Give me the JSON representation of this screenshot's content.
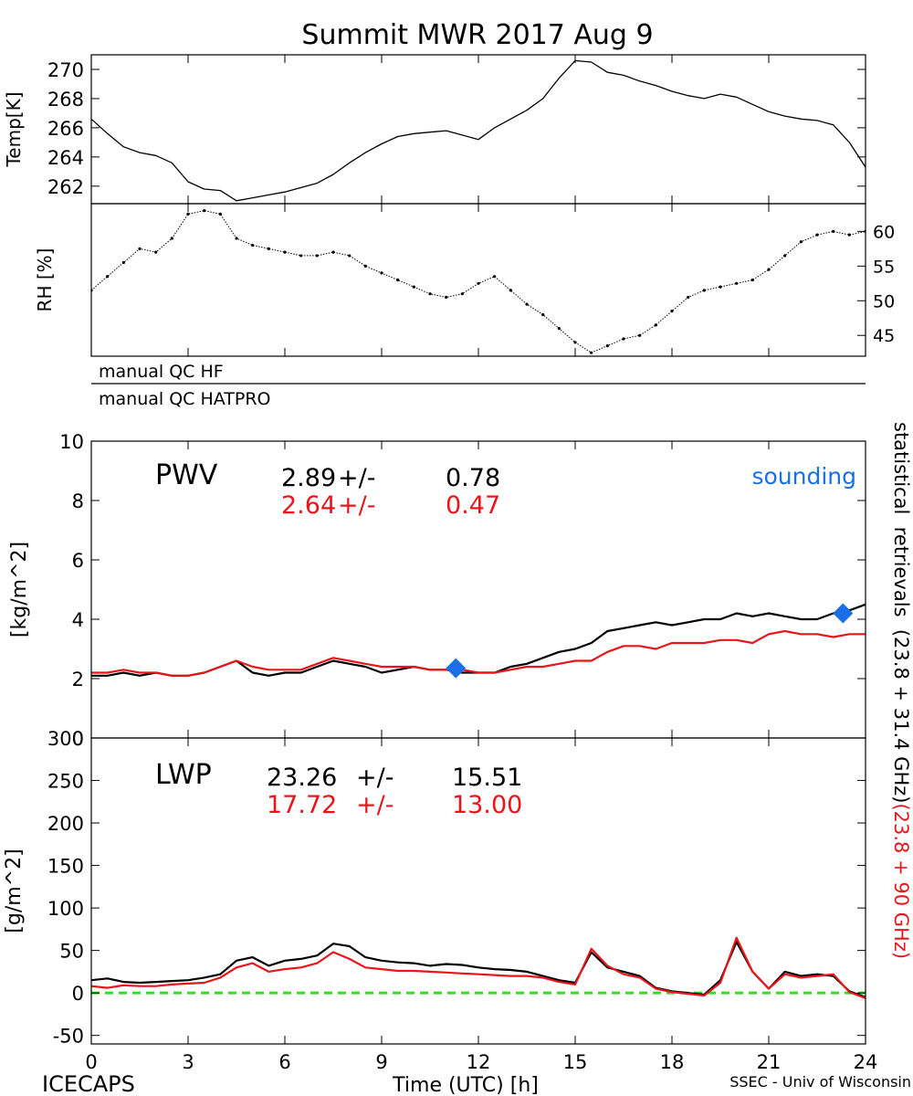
{
  "page": {
    "title": "Summit MWR 2017 Aug  9",
    "footer_left": "ICECAPS",
    "footer_right": "SSEC - Univ of Wisconsin",
    "qc_labels": [
      "manual  QC  HF",
      "manual  QC  HATPRO"
    ]
  },
  "colors": {
    "primary": "#000000",
    "secondary": "#e8161b",
    "sounding": "#1a6fe8",
    "zero_line": "#33dd22"
  },
  "chart_data": [
    {
      "id": "temp",
      "type": "line",
      "ylabel": "Temp[K]",
      "ylim": [
        260.8,
        271
      ],
      "yticks": [
        262,
        264,
        266,
        268,
        270
      ],
      "x": [
        0,
        0.5,
        1,
        1.5,
        2,
        2.5,
        3,
        3.5,
        4,
        4.5,
        5,
        5.5,
        6,
        6.5,
        7,
        7.5,
        8,
        8.5,
        9,
        9.5,
        10,
        10.5,
        11,
        11.5,
        12,
        12.5,
        13,
        13.5,
        14,
        14.5,
        15,
        15.5,
        16,
        16.5,
        17,
        17.5,
        18,
        18.5,
        19,
        19.5,
        20,
        20.5,
        21,
        21.5,
        22,
        22.5,
        23,
        23.5,
        24
      ],
      "y": [
        266.6,
        265.6,
        264.7,
        264.3,
        264.1,
        263.6,
        262.3,
        261.8,
        261.7,
        261.0,
        261.2,
        261.4,
        261.6,
        261.9,
        262.2,
        262.8,
        263.6,
        264.3,
        264.9,
        265.4,
        265.6,
        265.7,
        265.8,
        265.5,
        265.2,
        266.0,
        266.6,
        267.2,
        268.0,
        269.4,
        270.6,
        270.5,
        269.8,
        269.6,
        269.2,
        268.9,
        268.5,
        268.2,
        268.0,
        268.3,
        268.1,
        267.6,
        267.1,
        266.8,
        266.6,
        266.5,
        266.2,
        265.0,
        263.3
      ],
      "series": [
        {
          "name": "",
          "color": "#000000"
        }
      ]
    },
    {
      "id": "rh",
      "type": "scatter",
      "ylabel": "RH [%]",
      "ylim": [
        42,
        64
      ],
      "yticks": [
        45,
        50,
        55,
        60
      ],
      "x": [
        0,
        0.5,
        1,
        1.5,
        2,
        2.5,
        3,
        3.5,
        4,
        4.5,
        5,
        5.5,
        6,
        6.5,
        7,
        7.5,
        8,
        8.5,
        9,
        9.5,
        10,
        10.5,
        11,
        11.5,
        12,
        12.5,
        13,
        13.5,
        14,
        14.5,
        15,
        15.5,
        16,
        16.5,
        17,
        17.5,
        18,
        18.5,
        19,
        19.5,
        20,
        20.5,
        21,
        21.5,
        22,
        22.5,
        23,
        23.5,
        24
      ],
      "y": [
        51.5,
        53.5,
        55.5,
        57.5,
        57.0,
        59.0,
        62.5,
        63.0,
        62.5,
        59.0,
        58.0,
        57.5,
        57.0,
        56.5,
        56.5,
        57.0,
        56.5,
        55.0,
        54.0,
        53.0,
        52.0,
        51.0,
        50.5,
        51.0,
        52.5,
        53.5,
        51.5,
        49.5,
        48.0,
        46.0,
        44.0,
        42.5,
        43.5,
        44.5,
        45.0,
        46.5,
        48.5,
        50.5,
        51.5,
        52.0,
        52.5,
        53.0,
        54.5,
        56.5,
        58.5,
        59.5,
        60.0,
        59.5,
        60.0
      ],
      "series": [
        {
          "name": "",
          "color": "#000000"
        }
      ]
    },
    {
      "id": "pwv",
      "type": "line",
      "ylabel": "[kg/m^2]",
      "ylim": [
        0,
        10
      ],
      "yticks": [
        0,
        2,
        4,
        6,
        8,
        10
      ],
      "label": "PWV",
      "annotation": "sounding",
      "stats": [
        {
          "mean": "2.89",
          "pm": "+/-",
          "sd": "0.78"
        },
        {
          "mean": "2.64",
          "pm": "+/-",
          "sd": "0.47"
        }
      ],
      "x": [
        0,
        0.5,
        1,
        1.5,
        2,
        2.5,
        3,
        3.5,
        4,
        4.5,
        5,
        5.5,
        6,
        6.5,
        7,
        7.5,
        8,
        8.5,
        9,
        9.5,
        10,
        10.5,
        11,
        11.5,
        12,
        12.5,
        13,
        13.5,
        14,
        14.5,
        15,
        15.5,
        16,
        16.5,
        17,
        17.5,
        18,
        18.5,
        19,
        19.5,
        20,
        20.5,
        21,
        21.5,
        22,
        22.5,
        23,
        23.5,
        24
      ],
      "series": [
        {
          "name": "",
          "color": "#000000",
          "values": [
            2.1,
            2.1,
            2.2,
            2.1,
            2.2,
            2.1,
            2.1,
            2.2,
            2.4,
            2.6,
            2.2,
            2.1,
            2.2,
            2.2,
            2.4,
            2.6,
            2.5,
            2.4,
            2.2,
            2.3,
            2.4,
            2.3,
            2.3,
            2.2,
            2.2,
            2.2,
            2.4,
            2.5,
            2.7,
            2.9,
            3.0,
            3.2,
            3.6,
            3.7,
            3.8,
            3.9,
            3.8,
            3.9,
            4.0,
            4.0,
            4.2,
            4.1,
            4.2,
            4.1,
            4.0,
            4.0,
            4.2,
            4.3,
            4.5
          ]
        },
        {
          "name": "",
          "color": "#e8161b",
          "values": [
            2.2,
            2.2,
            2.3,
            2.2,
            2.2,
            2.1,
            2.1,
            2.2,
            2.4,
            2.6,
            2.4,
            2.3,
            2.3,
            2.3,
            2.5,
            2.7,
            2.6,
            2.5,
            2.4,
            2.4,
            2.4,
            2.3,
            2.3,
            2.3,
            2.2,
            2.2,
            2.3,
            2.4,
            2.4,
            2.5,
            2.6,
            2.6,
            2.9,
            3.1,
            3.1,
            3.0,
            3.2,
            3.2,
            3.2,
            3.3,
            3.3,
            3.2,
            3.5,
            3.6,
            3.5,
            3.5,
            3.4,
            3.5,
            3.5
          ]
        }
      ],
      "sounding_points": [
        {
          "x": 11.3,
          "y": 2.35
        },
        {
          "x": 23.3,
          "y": 4.2
        }
      ]
    },
    {
      "id": "lwp",
      "type": "line",
      "ylabel": "[g/m^2]",
      "ylim": [
        -60,
        300
      ],
      "yticks": [
        -50,
        0,
        50,
        100,
        150,
        200,
        250,
        300
      ],
      "label": "LWP",
      "stats": [
        {
          "mean": "23.26",
          "pm": "+/-",
          "sd": "15.51"
        },
        {
          "mean": "17.72",
          "pm": "+/-",
          "sd": "13.00"
        }
      ],
      "xlabel": "Time (UTC) [h]",
      "xlim": [
        0,
        24
      ],
      "xticks": [
        0,
        3,
        6,
        9,
        12,
        15,
        18,
        21,
        24
      ],
      "x": [
        0,
        0.5,
        1,
        1.5,
        2,
        2.5,
        3,
        3.5,
        4,
        4.5,
        5,
        5.5,
        6,
        6.5,
        7,
        7.5,
        8,
        8.5,
        9,
        9.5,
        10,
        10.5,
        11,
        11.5,
        12,
        12.5,
        13,
        13.5,
        14,
        14.5,
        15,
        15.5,
        16,
        16.5,
        17,
        17.5,
        18,
        18.5,
        19,
        19.5,
        20,
        20.5,
        21,
        21.5,
        22,
        22.5,
        23,
        23.5,
        24
      ],
      "series": [
        {
          "name": "",
          "color": "#000000",
          "values": [
            15,
            17,
            13,
            12,
            13,
            14,
            15,
            18,
            22,
            38,
            42,
            32,
            38,
            40,
            44,
            58,
            55,
            42,
            38,
            36,
            35,
            32,
            34,
            33,
            30,
            28,
            27,
            25,
            20,
            15,
            12,
            48,
            30,
            25,
            20,
            6,
            2,
            0,
            -2,
            15,
            60,
            25,
            5,
            25,
            20,
            22,
            20,
            2,
            -5
          ]
        },
        {
          "name": "",
          "color": "#e8161b",
          "values": [
            8,
            6,
            9,
            8,
            8,
            10,
            11,
            12,
            18,
            30,
            35,
            25,
            28,
            30,
            35,
            48,
            40,
            30,
            28,
            26,
            26,
            25,
            24,
            23,
            22,
            21,
            20,
            20,
            18,
            13,
            10,
            52,
            32,
            22,
            18,
            5,
            1,
            -1,
            -3,
            12,
            65,
            25,
            5,
            22,
            18,
            20,
            22,
            1,
            -6
          ]
        }
      ]
    }
  ],
  "side_labels": {
    "black": "statistical  retrievals  (23.8 + 31.4 GHz)",
    "red": "(23.8 + 90 GHz)"
  }
}
